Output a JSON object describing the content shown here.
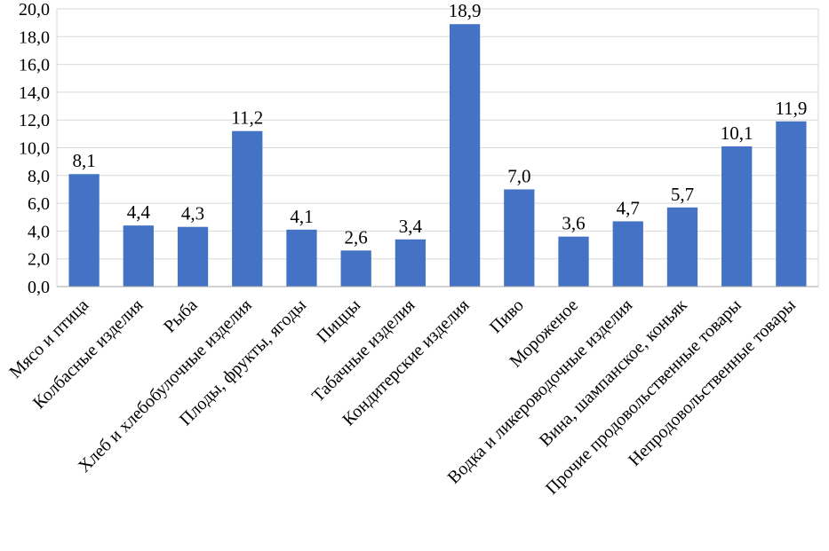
{
  "chart_data": {
    "type": "bar",
    "categories": [
      "Мясо и птица",
      "Колбасные изделия",
      "Рыба",
      "Хлеб и хлебобулочные изделия",
      "Плоды, фрукты, ягоды",
      "Пиццы",
      "Табачные изделия",
      "Кондитерские изделия",
      "Пиво",
      "Мороженое",
      "Водка и ликероводочные изделия",
      "Вина, шампанское, коньяк",
      "Прочие продовольственные товары",
      "Непродовольственные товары"
    ],
    "values": [
      8.1,
      4.4,
      4.3,
      11.2,
      4.1,
      2.6,
      3.4,
      18.9,
      7.0,
      3.6,
      4.7,
      5.7,
      10.1,
      11.9
    ],
    "value_labels": [
      "8,1",
      "4,4",
      "4,3",
      "11,2",
      "4,1",
      "2,6",
      "3,4",
      "18,9",
      "7,0",
      "3,6",
      "4,7",
      "5,7",
      "10,1",
      "11,9"
    ],
    "y_ticks": [
      0,
      2,
      4,
      6,
      8,
      10,
      12,
      14,
      16,
      18,
      20
    ],
    "y_tick_labels": [
      "0,0",
      "2,0",
      "4,0",
      "6,0",
      "8,0",
      "10,0",
      "12,0",
      "14,0",
      "16,0",
      "18,0",
      "20,0"
    ],
    "ylim": [
      0,
      20
    ],
    "grid": true,
    "legend": "none",
    "bar_color": "#4472C4",
    "grid_color": "#D9D9D9",
    "axis_color": "#A6A6A6"
  }
}
